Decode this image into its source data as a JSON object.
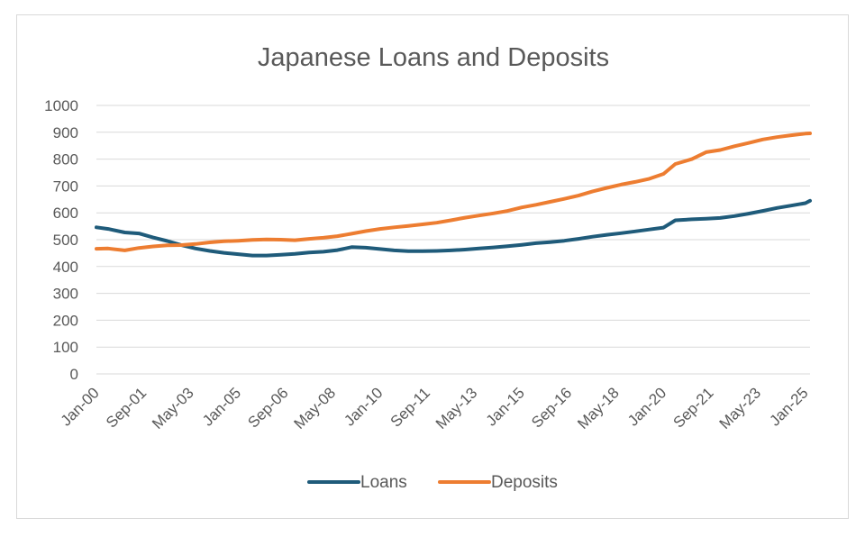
{
  "chart_data": {
    "type": "line",
    "title": "Japanese Loans and Deposits",
    "xlabel": "",
    "ylabel": "",
    "ylim": [
      0,
      1000
    ],
    "yticks": [
      0,
      100,
      200,
      300,
      400,
      500,
      600,
      700,
      800,
      900,
      1000
    ],
    "xlim": [
      "Jan-00",
      "Mar-25"
    ],
    "x_tick_labels": [
      "Jan-00",
      "Sep-01",
      "May-03",
      "Jan-05",
      "Sep-06",
      "May-08",
      "Jan-10",
      "Sep-11",
      "May-13",
      "Jan-15",
      "Sep-16",
      "May-18",
      "Jan-20",
      "Sep-21",
      "May-23",
      "Jan-25"
    ],
    "grid": "horizontal",
    "legend_position": "bottom",
    "series": [
      {
        "name": "Loans",
        "color": "#1f5b7a",
        "points": [
          [
            "Jan-00",
            546
          ],
          [
            "Jun-00",
            540
          ],
          [
            "Jan-01",
            527
          ],
          [
            "Jul-01",
            523
          ],
          [
            "Jan-02",
            508
          ],
          [
            "Jul-02",
            495
          ],
          [
            "Jan-03",
            480
          ],
          [
            "Jul-03",
            467
          ],
          [
            "Jan-04",
            458
          ],
          [
            "Jul-04",
            451
          ],
          [
            "Jan-05",
            446
          ],
          [
            "Jul-05",
            441
          ],
          [
            "Jan-06",
            441
          ],
          [
            "Jul-06",
            444
          ],
          [
            "Jan-07",
            447
          ],
          [
            "Jul-07",
            452
          ],
          [
            "Jan-08",
            455
          ],
          [
            "Jul-08",
            461
          ],
          [
            "Jan-09",
            472
          ],
          [
            "Jul-09",
            470
          ],
          [
            "Jan-10",
            465
          ],
          [
            "Jul-10",
            460
          ],
          [
            "Jan-11",
            457
          ],
          [
            "Jul-11",
            457
          ],
          [
            "Jan-12",
            458
          ],
          [
            "Jul-12",
            460
          ],
          [
            "Jan-13",
            463
          ],
          [
            "Jul-13",
            467
          ],
          [
            "Jan-14",
            471
          ],
          [
            "Jul-14",
            476
          ],
          [
            "Jan-15",
            481
          ],
          [
            "Jul-15",
            487
          ],
          [
            "Jan-16",
            491
          ],
          [
            "Jul-16",
            496
          ],
          [
            "Jan-17",
            503
          ],
          [
            "Jul-17",
            511
          ],
          [
            "Jan-18",
            518
          ],
          [
            "Jul-18",
            524
          ],
          [
            "Jan-19",
            531
          ],
          [
            "Jul-19",
            538
          ],
          [
            "Jan-20",
            545
          ],
          [
            "Jun-20",
            572
          ],
          [
            "Jan-21",
            576
          ],
          [
            "Jul-21",
            578
          ],
          [
            "Jan-22",
            581
          ],
          [
            "Jul-22",
            588
          ],
          [
            "Jan-23",
            597
          ],
          [
            "Jul-23",
            607
          ],
          [
            "Jan-24",
            618
          ],
          [
            "Jul-24",
            627
          ],
          [
            "Jan-25",
            636
          ],
          [
            "Mar-25",
            645
          ]
        ]
      },
      {
        "name": "Deposits",
        "color": "#ed7d31",
        "points": [
          [
            "Jan-00",
            466
          ],
          [
            "Jun-00",
            467
          ],
          [
            "Jan-01",
            460
          ],
          [
            "Jul-01",
            469
          ],
          [
            "Jan-02",
            475
          ],
          [
            "Jul-02",
            479
          ],
          [
            "Jan-03",
            480
          ],
          [
            "Jul-03",
            484
          ],
          [
            "Jan-04",
            490
          ],
          [
            "Jul-04",
            494
          ],
          [
            "Jan-05",
            496
          ],
          [
            "Jul-05",
            499
          ],
          [
            "Jan-06",
            501
          ],
          [
            "Jul-06",
            500
          ],
          [
            "Jan-07",
            498
          ],
          [
            "Jul-07",
            503
          ],
          [
            "Jan-08",
            507
          ],
          [
            "Jul-08",
            513
          ],
          [
            "Jan-09",
            522
          ],
          [
            "Jul-09",
            532
          ],
          [
            "Jan-10",
            540
          ],
          [
            "Jul-10",
            546
          ],
          [
            "Jan-11",
            551
          ],
          [
            "Jul-11",
            557
          ],
          [
            "Jan-12",
            563
          ],
          [
            "Jul-12",
            572
          ],
          [
            "Jan-13",
            582
          ],
          [
            "Jul-13",
            590
          ],
          [
            "Jan-14",
            598
          ],
          [
            "Jul-14",
            607
          ],
          [
            "Jan-15",
            620
          ],
          [
            "Jul-15",
            630
          ],
          [
            "Jan-16",
            641
          ],
          [
            "Jul-16",
            652
          ],
          [
            "Jan-17",
            664
          ],
          [
            "Jul-17",
            680
          ],
          [
            "Jan-18",
            693
          ],
          [
            "Jul-18",
            705
          ],
          [
            "Jan-19",
            715
          ],
          [
            "Jul-19",
            727
          ],
          [
            "Jan-20",
            745
          ],
          [
            "Jun-20",
            782
          ],
          [
            "Jan-21",
            800
          ],
          [
            "Jul-21",
            826
          ],
          [
            "Jan-22",
            834
          ],
          [
            "Jul-22",
            848
          ],
          [
            "Jan-23",
            860
          ],
          [
            "Jul-23",
            873
          ],
          [
            "Jan-24",
            882
          ],
          [
            "Jul-24",
            889
          ],
          [
            "Jan-25",
            895
          ],
          [
            "Mar-25",
            896
          ]
        ]
      }
    ]
  }
}
